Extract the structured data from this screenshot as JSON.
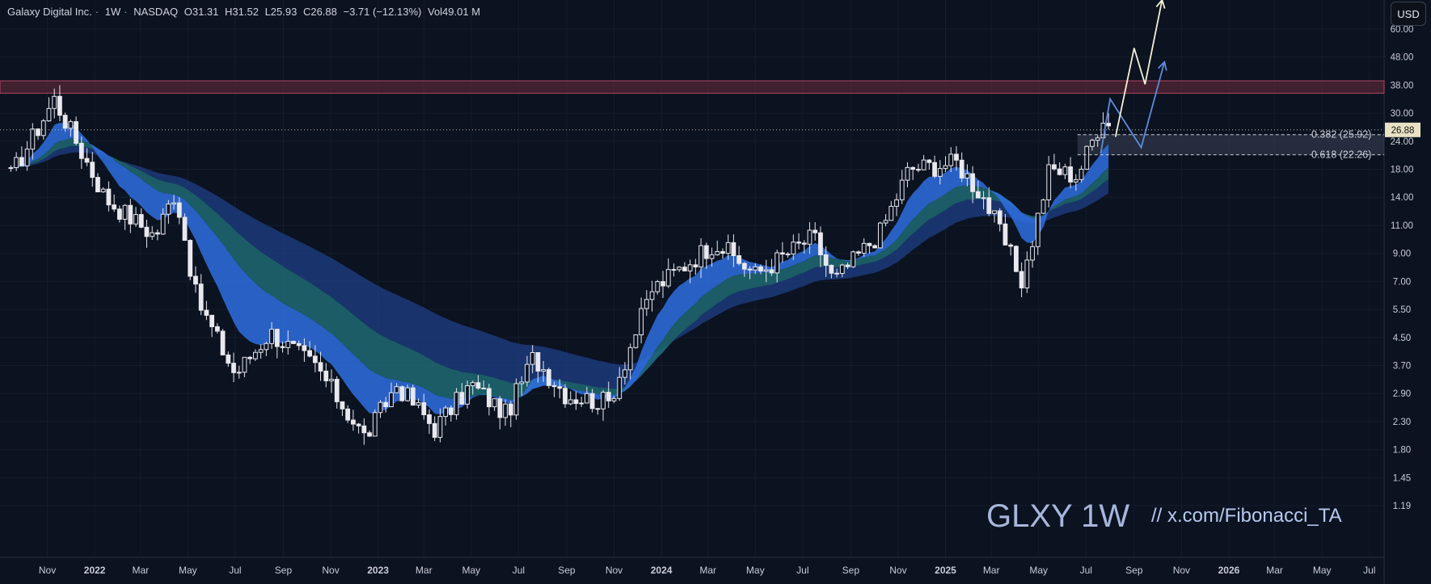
{
  "header": {
    "name": "Galaxy Digital Inc.",
    "interval": "1W",
    "exchange": "NASDAQ",
    "open": "O31.31",
    "high": "H31.52",
    "low": "L25.93",
    "close": "C26.88",
    "change": "−3.71 (−12.13%)",
    "volume": "Vol49.01 M"
  },
  "currency_button": "USD",
  "watermark": {
    "ticker": "GLXY 1W",
    "handle": "//  x.com/Fibonacci_TA"
  },
  "colors": {
    "background": "#0b1220",
    "grid": "#161c2b",
    "candle_up": "#e8e8ee",
    "candle_down": "#e8e8ee",
    "resistance_zone": "#6e2a3a",
    "ema_fast": "#2f6fe0",
    "ema_band": "#1f3f86",
    "ema_teal": "#1f6f78",
    "projection_light": "#f5f0d5",
    "projection_blue": "#5b8de0",
    "last_price_label": "#e8e2c4"
  },
  "chart_data": {
    "type": "candlestick",
    "symbol": "GLXY",
    "interval": "1W",
    "y_scale": "log",
    "ylim": [
      1.05,
      72
    ],
    "y_ticks": [
      "60.00",
      "48.00",
      "38.00",
      "30.00",
      "24.00",
      "18.00",
      "14.00",
      "11.00",
      "9.00",
      "7.00",
      "5.50",
      "4.50",
      "3.70",
      "2.90",
      "2.30",
      "1.80",
      "1.45",
      "1.19"
    ],
    "x_ticks": [
      "Nov",
      "2022",
      "Mar",
      "May",
      "Jul",
      "Sep",
      "Nov",
      "2023",
      "Mar",
      "May",
      "Jul",
      "Sep",
      "Nov",
      "2024",
      "Mar",
      "May",
      "Jul",
      "Sep",
      "Nov",
      "2025",
      "Mar",
      "May",
      "Jul",
      "Sep",
      "Nov",
      "2026",
      "Mar",
      "May",
      "Jul"
    ],
    "last_price": "26.88",
    "resistance_zone": {
      "low": 35.5,
      "high": 39.0
    },
    "fib_zone": {
      "low": 22.26,
      "high": 25.92
    },
    "fib_levels": [
      {
        "label": "0.382 (25.92)",
        "value": 25.92
      },
      {
        "label": "0.618 (22.26)",
        "value": 22.26
      }
    ],
    "anchors": [
      {
        "date": "2021-09-15",
        "price": 19
      },
      {
        "date": "2021-11-10",
        "price": 34
      },
      {
        "date": "2022-01-15",
        "price": 16
      },
      {
        "date": "2022-03-20",
        "price": 12
      },
      {
        "date": "2022-04-15",
        "price": 17
      },
      {
        "date": "2022-05-12",
        "price": 7.5
      },
      {
        "date": "2022-07-01",
        "price": 4.2
      },
      {
        "date": "2022-08-15",
        "price": 5.8
      },
      {
        "date": "2022-10-15",
        "price": 4.4
      },
      {
        "date": "2022-12-15",
        "price": 2.6
      },
      {
        "date": "2023-01-25",
        "price": 3.9
      },
      {
        "date": "2023-03-15",
        "price": 2.8
      },
      {
        "date": "2023-05-01",
        "price": 3.9
      },
      {
        "date": "2023-06-15",
        "price": 3.1
      },
      {
        "date": "2023-07-20",
        "price": 4.8
      },
      {
        "date": "2023-09-01",
        "price": 3.6
      },
      {
        "date": "2023-10-25",
        "price": 3.4
      },
      {
        "date": "2023-12-20",
        "price": 8.0
      },
      {
        "date": "2024-03-10",
        "price": 11.5
      },
      {
        "date": "2024-05-01",
        "price": 9.0
      },
      {
        "date": "2024-07-15",
        "price": 12.0
      },
      {
        "date": "2024-08-10",
        "price": 8.5
      },
      {
        "date": "2024-10-10",
        "price": 12.5
      },
      {
        "date": "2024-11-15",
        "price": 20.0
      },
      {
        "date": "2025-01-15",
        "price": 21.0
      },
      {
        "date": "2025-02-20",
        "price": 16.0
      },
      {
        "date": "2025-04-10",
        "price": 8.5
      },
      {
        "date": "2025-05-15",
        "price": 20.0
      },
      {
        "date": "2025-06-20",
        "price": 19.0
      },
      {
        "date": "2025-07-25",
        "price": 31.0
      },
      {
        "date": "2025-08-01",
        "price": 26.88
      }
    ],
    "projection_light": [
      {
        "date": "2025-08-08",
        "price": 25.5
      },
      {
        "date": "2025-09-01",
        "price": 50.0
      },
      {
        "date": "2025-09-15",
        "price": 38.0
      },
      {
        "date": "2025-10-07",
        "price": 72.0
      }
    ],
    "projection_blue": [
      {
        "date": "2025-07-20",
        "price": 22.5
      },
      {
        "date": "2025-08-01",
        "price": 34.0
      },
      {
        "date": "2025-09-10",
        "price": 23.5
      },
      {
        "date": "2025-10-10",
        "price": 45.0
      }
    ]
  }
}
